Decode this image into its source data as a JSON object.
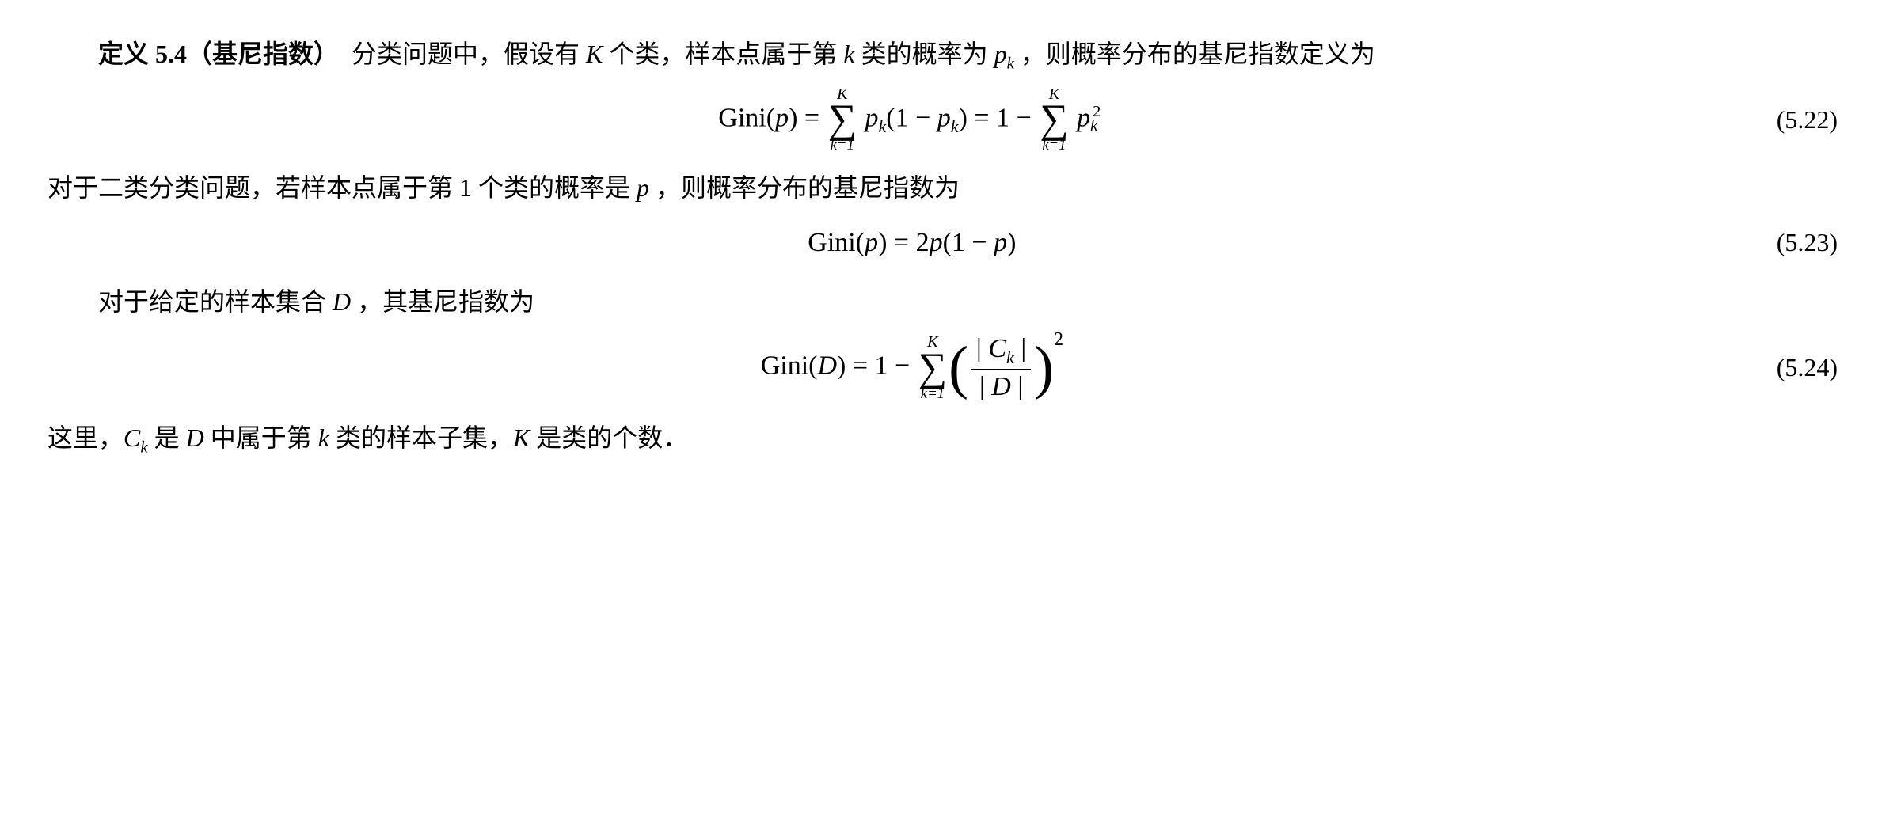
{
  "def_label": "定义 5.4",
  "def_paren": "（基尼指数）",
  "para1_part1": "分类问题中，假设有 ",
  "para1_K": "K",
  "para1_part2": " 个类，样本点属于第 ",
  "para1_k": "k",
  "para1_part3": " 类的概率为 ",
  "para1_pk_p": "p",
  "para1_pk_k": "k",
  "para1_part4": " ，则概率分布的基尼指数定义为",
  "eq1": {
    "gini": "Gini",
    "p": "p",
    "eq": " = ",
    "sum_upper": "K",
    "sum_lower": "k=1",
    "pk_p": "p",
    "pk_k": "k",
    "lparen": "(1 − ",
    "rparen": ")",
    "eq2": " = 1 − ",
    "sq": "2",
    "number": "(5.22)"
  },
  "para2_part1": "对于二类分类问题，若样本点属于第 1 个类的概率是 ",
  "para2_p": "p",
  "para2_part2": " ，则概率分布的基尼指数为",
  "eq2": {
    "gini": "Gini",
    "p": "p",
    "body": " = 2",
    "p2": "p",
    "rest": "(1 − ",
    "p3": "p",
    "end": ")",
    "number": "(5.23)"
  },
  "para3_part1": "对于给定的样本集合 ",
  "para3_D": "D",
  "para3_part2": " ，其基尼指数为",
  "eq3": {
    "gini": "Gini",
    "D": "D",
    "eq": " = 1 − ",
    "sum_upper": "K",
    "sum_lower": "k=1",
    "Ck_bar": "| ",
    "Ck_C": "C",
    "Ck_k": "k",
    "Ck_bar2": " |",
    "D_bar": "| ",
    "D_D": "D",
    "D_bar2": " |",
    "sq": "2",
    "number": "(5.24)"
  },
  "para4_part1": "这里，",
  "para4_Ck_C": "C",
  "para4_Ck_k": "k",
  "para4_part2": " 是 ",
  "para4_D": "D",
  "para4_part3": " 中属于第 ",
  "para4_k": "k",
  "para4_part4": " 类的样本子集，",
  "para4_K": "K",
  "para4_part5": " 是类的个数．"
}
